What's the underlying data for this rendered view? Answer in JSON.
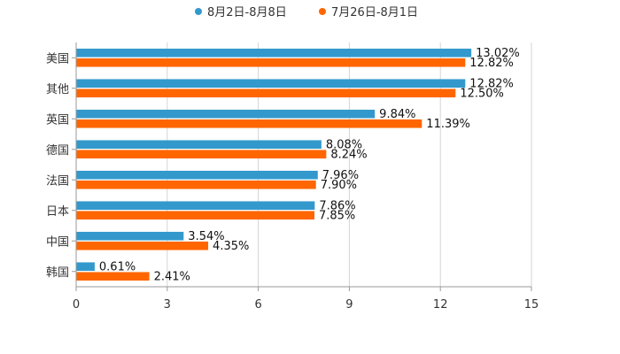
{
  "colors": {
    "series_a": "#3399cc",
    "series_b": "#ff6600",
    "grid": "#d4d4d4",
    "axis": "#999999"
  },
  "chart_data": {
    "type": "bar",
    "orientation": "horizontal",
    "title": "",
    "xlabel": "",
    "ylabel": "",
    "xlim": [
      0,
      15
    ],
    "x_ticks": [
      "0",
      "3",
      "6",
      "9",
      "12",
      "15"
    ],
    "grid": true,
    "legend_position": "top-center",
    "categories": [
      "美国",
      "其他",
      "英国",
      "德国",
      "法国",
      "日本",
      "中国",
      "韩国"
    ],
    "series": [
      {
        "name": "8月2日-8月8日",
        "values": [
          13.02,
          12.82,
          9.84,
          8.08,
          7.96,
          7.86,
          3.54,
          0.61
        ],
        "labels": [
          "13.02%",
          "12.82%",
          "9.84%",
          "8.08%",
          "7.96%",
          "7.86%",
          "3.54%",
          "0.61%"
        ]
      },
      {
        "name": "7月26日-8月1日",
        "values": [
          12.82,
          12.5,
          11.39,
          8.24,
          7.9,
          7.85,
          4.35,
          2.41
        ],
        "labels": [
          "12.82%",
          "12.50%",
          "11.39%",
          "8.24%",
          "7.90%",
          "7.85%",
          "4.35%",
          "2.41%"
        ]
      }
    ]
  }
}
